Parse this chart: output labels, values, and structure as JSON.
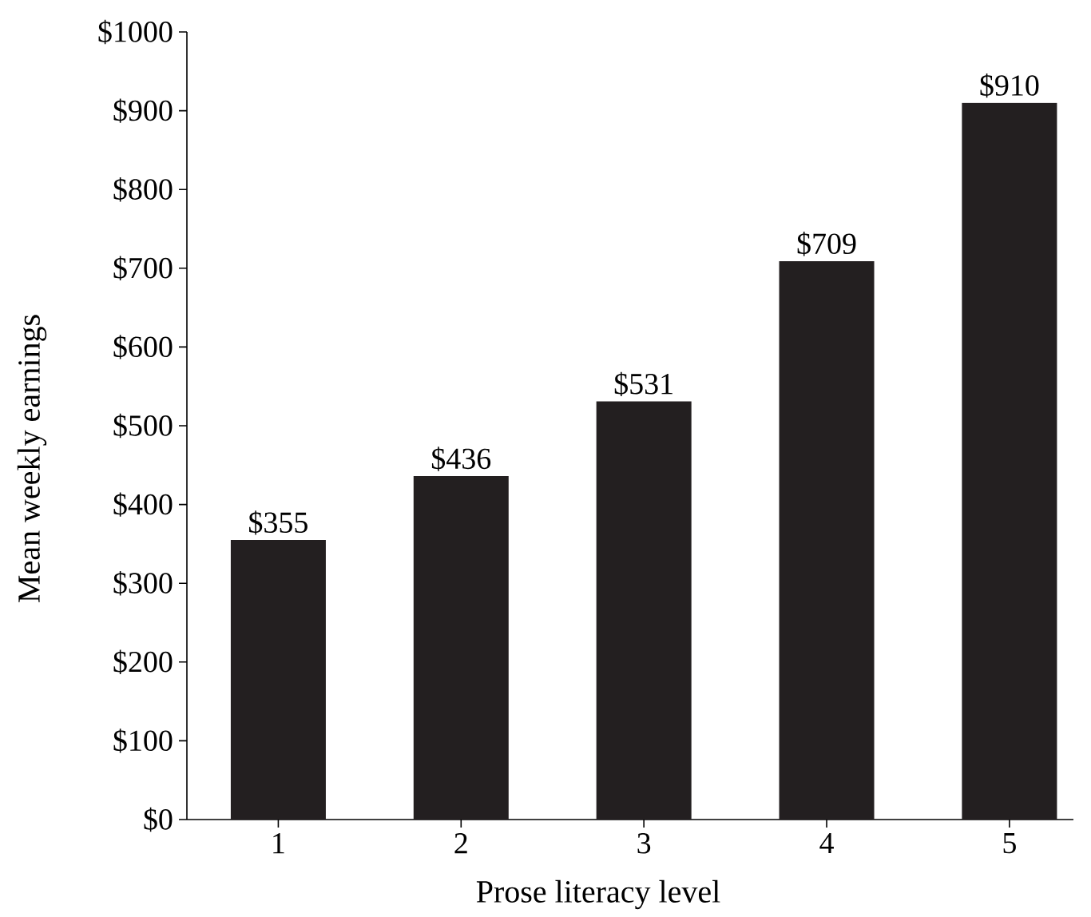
{
  "chart_data": {
    "type": "bar",
    "xlabel": "Prose literacy level",
    "ylabel": "Mean weekly earnings",
    "categories": [
      "1",
      "2",
      "3",
      "4",
      "5"
    ],
    "values": [
      355,
      436,
      531,
      709,
      910
    ],
    "value_labels": [
      "$355",
      "$436",
      "$531",
      "$709",
      "$910"
    ],
    "color": "#231f20",
    "ylim": [
      0,
      1000
    ],
    "yticks": [
      {
        "value": 0,
        "label": "$0"
      },
      {
        "value": 100,
        "label": "$100"
      },
      {
        "value": 200,
        "label": "$200"
      },
      {
        "value": 300,
        "label": "$300"
      },
      {
        "value": 400,
        "label": "$400"
      },
      {
        "value": 500,
        "label": "$500"
      },
      {
        "value": 600,
        "label": "$600"
      },
      {
        "value": 700,
        "label": "$700"
      },
      {
        "value": 800,
        "label": "$800"
      },
      {
        "value": 900,
        "label": "$900"
      },
      {
        "value": 1000,
        "label": "$1000"
      }
    ],
    "grid": false
  }
}
